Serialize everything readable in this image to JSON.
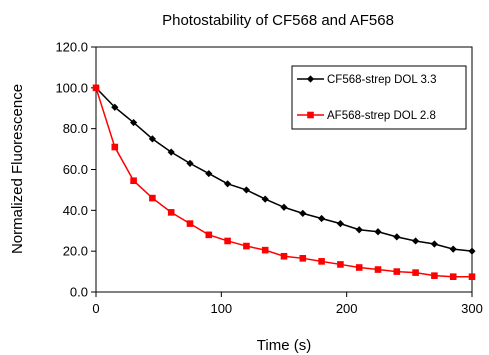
{
  "chart_data": {
    "type": "line",
    "title": "Photostability of CF568 and AF568",
    "xlabel": "Time (s)",
    "ylabel": "Normalized Fluorescence",
    "xlim": [
      0,
      300
    ],
    "ylim": [
      0,
      120
    ],
    "x_ticks": [
      "0",
      "100",
      "200",
      "300"
    ],
    "y_ticks": [
      "0.0",
      "20.0",
      "40.0",
      "60.0",
      "80.0",
      "100.0",
      "120.0"
    ],
    "grid": false,
    "legend_position": "top-right",
    "x": [
      0,
      15,
      30,
      45,
      60,
      75,
      90,
      105,
      120,
      135,
      150,
      165,
      180,
      195,
      210,
      225,
      240,
      255,
      270,
      285,
      300
    ],
    "series": [
      {
        "name": "CF568-strep DOL 3.3",
        "color": "#000000",
        "marker": "diamond",
        "values": [
          100,
          90.5,
          83,
          75,
          68.5,
          63,
          58,
          53,
          50,
          45.5,
          41.5,
          38.5,
          36,
          33.5,
          30.5,
          29.5,
          27,
          25,
          23.5,
          21,
          20
        ]
      },
      {
        "name": "AF568-strep DOL 2.8",
        "color": "#ff0000",
        "marker": "square",
        "values": [
          100,
          71,
          54.5,
          46,
          39,
          33.5,
          28,
          25,
          22.5,
          20.5,
          17.5,
          16.5,
          15,
          13.5,
          12,
          11,
          10,
          9.5,
          8,
          7.5,
          7.5
        ]
      }
    ]
  }
}
